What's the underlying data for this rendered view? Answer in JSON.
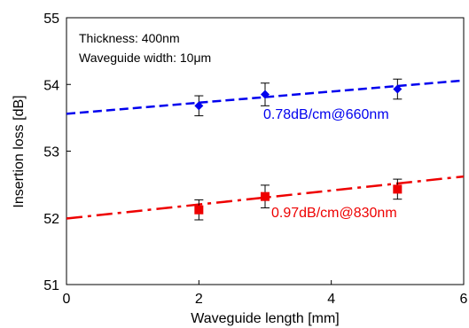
{
  "chart_data": {
    "type": "scatter",
    "xlabel": "Waveguide length  [mm]",
    "ylabel": "Insertion loss [dB]",
    "xlim": [
      0,
      6
    ],
    "ylim": [
      51,
      55
    ],
    "x_ticks": [
      "0",
      "2",
      "4",
      "6"
    ],
    "y_ticks": [
      "51",
      "52",
      "53",
      "54",
      "55"
    ],
    "grid": false,
    "annotation_lines": [
      "Thickness: 400nm",
      "Waveguide width: 10μm"
    ],
    "series": [
      {
        "marker": "diamond",
        "color": "#0000ee",
        "line_style": "dashed",
        "x": [
          2,
          3,
          5
        ],
        "y": [
          53.68,
          53.85,
          53.93
        ],
        "error": [
          0.15,
          0.17,
          0.15
        ],
        "fit": {
          "x": [
            0,
            6
          ],
          "y": [
            53.56,
            54.06
          ]
        },
        "label": "0.78dB/cm@660nm"
      },
      {
        "marker": "square",
        "color": "#ee0000",
        "line_style": "dash-dot",
        "x": [
          2,
          3,
          5
        ],
        "y": [
          52.12,
          52.32,
          52.43
        ],
        "error": [
          0.15,
          0.17,
          0.15
        ],
        "fit": {
          "x": [
            0,
            6
          ],
          "y": [
            51.99,
            52.62
          ]
        },
        "label": "0.97dB/cm@830nm"
      }
    ]
  }
}
